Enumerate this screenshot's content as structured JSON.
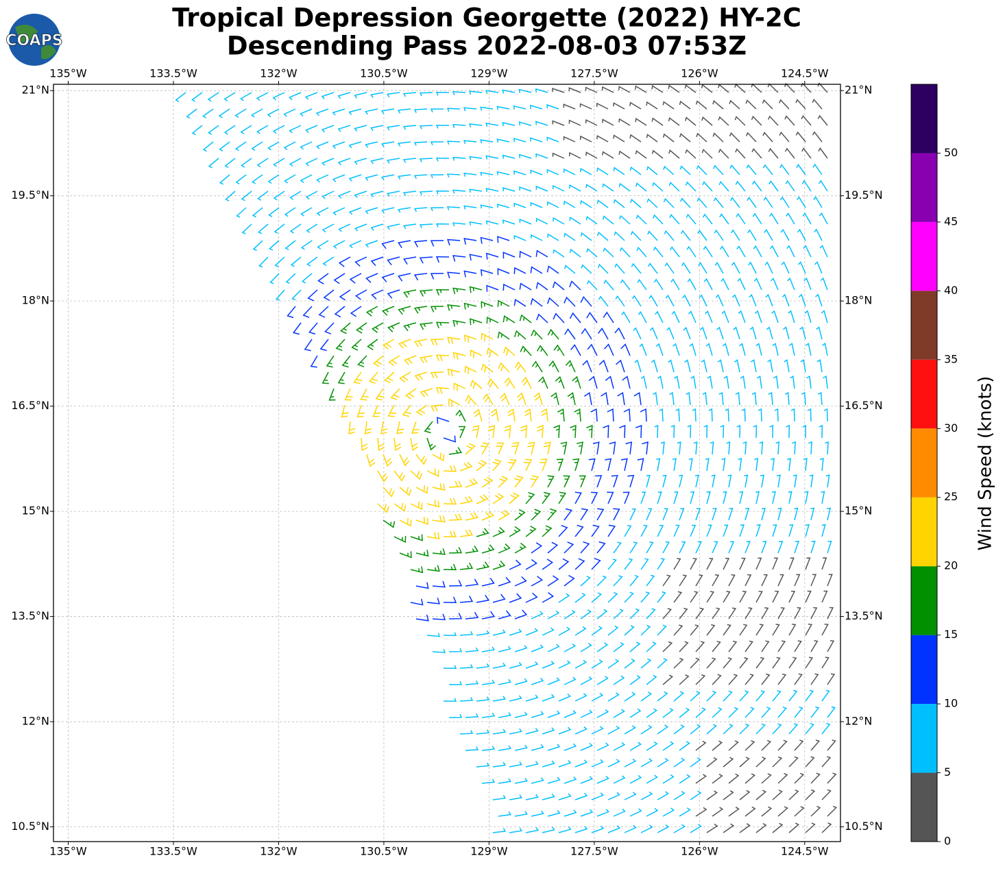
{
  "logo": {
    "text": "COAPS"
  },
  "chart_data": {
    "type": "map",
    "title": [
      "Tropical Depression Georgette (2022) HY-2C",
      "Descending Pass 2022-08-03 07:53Z"
    ],
    "xlim": [
      -135.21,
      -123.99
    ],
    "ylim": [
      10.29,
      21.09
    ],
    "xticks": [
      {
        "value": -135,
        "label": "135°W"
      },
      {
        "value": -133.5,
        "label": "133.5°W"
      },
      {
        "value": -132,
        "label": "132°W"
      },
      {
        "value": -130.5,
        "label": "130.5°W"
      },
      {
        "value": -129,
        "label": "129°W"
      },
      {
        "value": -127.5,
        "label": "127.5°W"
      },
      {
        "value": -126,
        "label": "126°W"
      },
      {
        "value": -124.5,
        "label": "124.5°W"
      }
    ],
    "yticks": [
      {
        "value": 21,
        "label": "21°N"
      },
      {
        "value": 19.5,
        "label": "19.5°N"
      },
      {
        "value": 18,
        "label": "18°N"
      },
      {
        "value": 16.5,
        "label": "16.5°N"
      },
      {
        "value": 15,
        "label": "15°N"
      },
      {
        "value": 13.5,
        "label": "13.5°N"
      },
      {
        "value": 12,
        "label": "12°N"
      },
      {
        "value": 10.5,
        "label": "10.5°N"
      }
    ],
    "grid": true,
    "colorbar": {
      "label": "Wind Speed (knots)",
      "lim": [
        0,
        55
      ],
      "ticks": [
        0,
        5,
        10,
        15,
        20,
        25,
        30,
        35,
        40,
        45,
        50
      ],
      "colors": [
        "#555555",
        "#00bfff",
        "#0033ff",
        "#009000",
        "#ffd400",
        "#ff8c00",
        "#ff1010",
        "#7f3a28",
        "#ff00ff",
        "#8800b0",
        "#2d0060"
      ]
    }
  }
}
